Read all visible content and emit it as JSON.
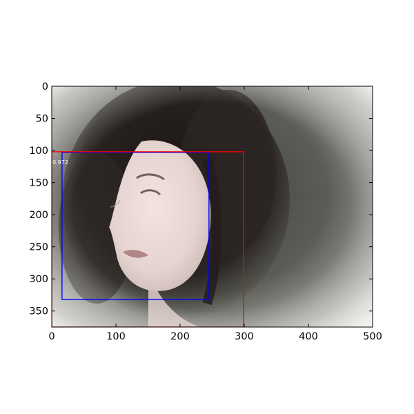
{
  "chart_data": {
    "type": "image-with-bounding-boxes",
    "image": {
      "subject": "portrait-photo",
      "width": 500,
      "height": 375
    },
    "xlim": [
      0,
      500
    ],
    "ylim": [
      375,
      0
    ],
    "y_inverted": true,
    "xticks": [
      0,
      100,
      200,
      300,
      400,
      500
    ],
    "yticks": [
      0,
      50,
      100,
      150,
      200,
      250,
      300,
      350
    ],
    "grid": false,
    "boxes": [
      {
        "color": "#0000ff",
        "x_min": 16,
        "y_min": 103,
        "x_max": 245,
        "y_max": 332,
        "score_label": "0.972"
      },
      {
        "color": "#ff0000",
        "x_min": 0,
        "y_min": 102,
        "x_max": 299,
        "y_max": 375,
        "score_label": ""
      }
    ]
  }
}
